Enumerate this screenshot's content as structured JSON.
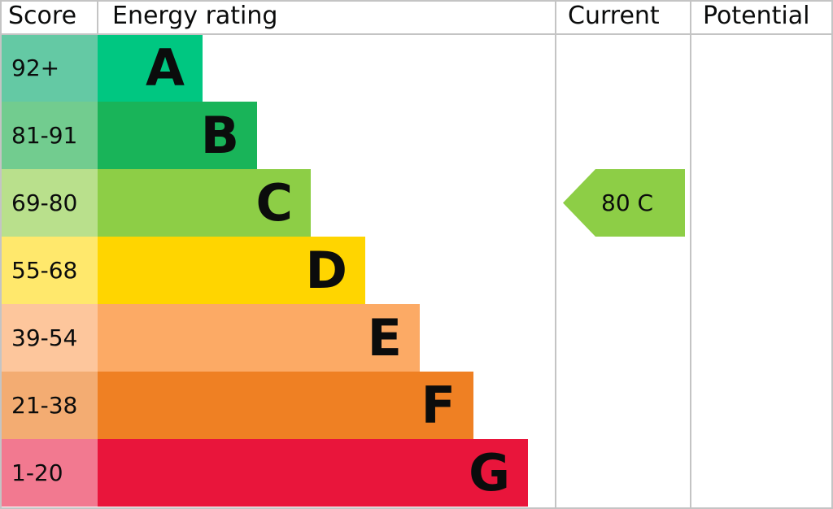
{
  "headers": {
    "score": "Score",
    "rating": "Energy rating",
    "current": "Current",
    "potential": "Potential"
  },
  "chart_data": {
    "type": "bar",
    "categories": [
      "A",
      "B",
      "C",
      "D",
      "E",
      "F",
      "G"
    ],
    "score_ranges": [
      "92+",
      "81-91",
      "69-80",
      "55-68",
      "39-54",
      "21-38",
      "1-20"
    ],
    "bar_colors": [
      "#00c781",
      "#19b459",
      "#8dce46",
      "#ffd500",
      "#fcaa65",
      "#ef8023",
      "#e9153b"
    ],
    "score_colors": [
      "#64c9a4",
      "#72cc8f",
      "#b9e08c",
      "#ffe86c",
      "#fdc69c",
      "#f3ac72",
      "#f27990"
    ],
    "current": {
      "score": 80,
      "band": "C",
      "label": "80  C",
      "color": "#8dce46"
    },
    "potential": null
  }
}
